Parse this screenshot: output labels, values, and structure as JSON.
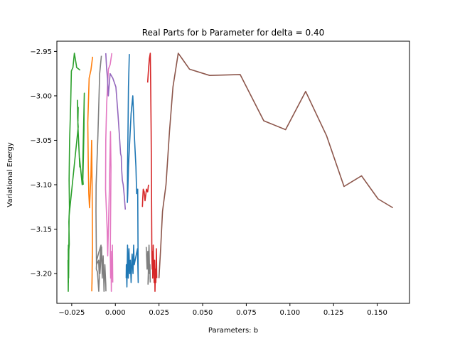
{
  "chart_data": {
    "type": "line",
    "title": "Real Parts for b Parameter for delta = 0.40",
    "xlabel": "Parameters: b",
    "ylabel": "Variational Energy",
    "xlim": [
      -0.0335,
      0.1685
    ],
    "ylim": [
      -3.2335,
      -2.9385
    ],
    "xticks": [
      -0.025,
      0.0,
      0.025,
      0.05,
      0.075,
      0.1,
      0.125,
      0.15
    ],
    "xtick_labels": [
      "−0.025",
      "0.000",
      "0.025",
      "0.050",
      "0.075",
      "0.100",
      "0.125",
      "0.150"
    ],
    "yticks": [
      -3.2,
      -3.15,
      -3.1,
      -3.05,
      -3.0,
      -2.95
    ],
    "ytick_labels": [
      "−3.20",
      "−3.15",
      "−3.10",
      "−3.05",
      "−3.00",
      "−2.95"
    ],
    "grid": false,
    "series": [
      {
        "color": "#2ca02c",
        "x": [
          -0.0202,
          -0.0222,
          -0.0223,
          -0.0235,
          -0.0243,
          -0.0252,
          -0.0256,
          -0.0262,
          -0.0265,
          -0.0263,
          -0.0266,
          -0.0264,
          -0.0268,
          -0.0267,
          -0.0269,
          -0.027,
          -0.0268,
          -0.027,
          -0.0271,
          -0.0269,
          -0.027,
          -0.0268,
          -0.0266,
          -0.0265,
          -0.0213,
          -0.0216,
          -0.0217,
          -0.0214,
          -0.0216,
          -0.0213,
          -0.0215,
          -0.0204,
          -0.0205,
          -0.019,
          -0.0186,
          -0.0183,
          -0.018,
          -0.0179,
          -0.0178,
          -0.0188,
          -0.0184
        ],
        "y": [
          -2.971,
          -2.968,
          -2.966,
          -2.952,
          -2.968,
          -2.972,
          -3.01,
          -3.05,
          -3.095,
          -3.126,
          -3.142,
          -3.167,
          -3.178,
          -3.185,
          -3.168,
          -3.2,
          -3.178,
          -3.22,
          -3.185,
          -3.21,
          -3.172,
          -3.205,
          -3.168,
          -3.135,
          -3.035,
          -3.025,
          -3.005,
          -3.028,
          -3.017,
          -3.013,
          -3.032,
          -3.08,
          -3.07,
          -3.1,
          -3.093,
          -3.069,
          -3.037,
          -3.012,
          -2.997,
          -3.09,
          -3.1
        ]
      },
      {
        "color": "#ff7f0e",
        "x": [
          -0.013,
          -0.014,
          -0.015,
          -0.0158,
          -0.0155,
          -0.0152,
          -0.0148,
          -0.014,
          -0.0136,
          -0.0133,
          -0.0131,
          -0.0132,
          -0.0131,
          -0.0133,
          -0.0132,
          -0.0134,
          -0.0133,
          -0.0135
        ],
        "y": [
          -2.956,
          -2.971,
          -2.98,
          -3.03,
          -3.08,
          -3.11,
          -3.126,
          -3.09,
          -3.05,
          -3.1,
          -3.168,
          -3.185,
          -3.17,
          -3.198,
          -3.18,
          -3.212,
          -3.2,
          -3.22
        ]
      },
      {
        "color": "#7f7f7f",
        "x": [
          -0.008,
          -0.009,
          -0.01,
          -0.011,
          -0.0111,
          -0.0108,
          -0.0096,
          -0.0092,
          -0.0095,
          -0.01,
          -0.0103,
          -0.0109,
          -0.0107,
          -0.0093,
          -0.0082,
          -0.009,
          -0.0088,
          -0.0079,
          -0.0075,
          -0.007,
          -0.0065,
          -0.006,
          -0.0055,
          -0.0054
        ],
        "y": [
          -2.955,
          -2.975,
          -3.045,
          -3.1,
          -3.13,
          -3.19,
          -3.185,
          -3.205,
          -3.22,
          -3.205,
          -3.198,
          -3.195,
          -3.185,
          -3.175,
          -3.168,
          -3.19,
          -3.2,
          -3.17,
          -3.205,
          -3.18,
          -3.22,
          -3.19,
          -3.212,
          -3.22
        ]
      },
      {
        "color": "#e377c2",
        "x": [
          -0.002,
          -0.003,
          -0.004,
          -0.005,
          -0.0055,
          -0.0056,
          -0.0047,
          -0.0044,
          -0.0035,
          -0.003,
          -0.0028,
          -0.0025,
          -0.0029,
          -0.0027,
          -0.0025,
          -0.0023,
          -0.0021,
          -0.0019,
          -0.0017,
          -0.0015
        ],
        "y": [
          -2.952,
          -2.965,
          -2.97,
          -3.01,
          -3.05,
          -3.105,
          -3.15,
          -3.18,
          -3.11,
          -3.06,
          -3.04,
          -3.08,
          -3.18,
          -3.205,
          -3.175,
          -3.22,
          -3.185,
          -3.2,
          -3.168,
          -3.21
        ]
      },
      {
        "color": "#9467bd",
        "x": [
          -0.0055,
          -0.005,
          -0.0045,
          -0.004,
          -0.003,
          -0.0015,
          0.0003,
          0.0015,
          0.0025,
          0.003,
          0.0034,
          0.0035,
          0.004,
          0.0045,
          0.005,
          0.0057
        ],
        "y": [
          -2.952,
          -2.97,
          -2.98,
          -3.0,
          -2.975,
          -2.98,
          -2.99,
          -3.02,
          -3.05,
          -3.065,
          -3.068,
          -3.08,
          -3.095,
          -3.1,
          -3.11,
          -3.128
        ]
      },
      {
        "color": "#1f77b4",
        "x": [
          0.008,
          0.0075,
          0.0072,
          0.007,
          0.0069,
          0.0071,
          0.0075,
          0.008,
          0.009,
          0.01,
          0.011,
          0.0118,
          0.0122,
          0.0128,
          0.0131,
          0.0127,
          0.0108,
          0.0105,
          0.0101,
          0.0096,
          0.009,
          0.0086,
          0.0082,
          0.0078,
          0.0074,
          0.007,
          0.0066,
          0.0063,
          0.0062
        ],
        "y": [
          -2.953,
          -2.99,
          -3.05,
          -3.08,
          -3.12,
          -3.11,
          -3.08,
          -3.06,
          -3.02,
          -3.0,
          -3.05,
          -3.08,
          -3.11,
          -3.105,
          -3.21,
          -3.172,
          -3.19,
          -3.168,
          -3.2,
          -3.178,
          -3.21,
          -3.185,
          -3.2,
          -3.172,
          -3.205,
          -3.168,
          -3.215,
          -3.19,
          -3.205
        ]
      },
      {
        "color": "#d62728",
        "x": [
          0.0185,
          0.019,
          0.0195,
          0.02,
          0.0202,
          0.0205,
          0.0207,
          0.0209,
          0.0211,
          0.0213,
          0.0214,
          0.0217,
          0.0222,
          0.0225,
          0.0227,
          0.023,
          0.0232,
          0.0235,
          0.0237
        ],
        "y": [
          -2.985,
          -2.97,
          -2.958,
          -2.952,
          -2.985,
          -3.04,
          -3.1,
          -3.18,
          -3.195,
          -3.175,
          -3.205,
          -3.168,
          -3.21,
          -3.185,
          -3.22,
          -3.195,
          -3.21,
          -3.172,
          -3.205
        ]
      },
      {
        "color": "#8c564b",
        "x": [
          0.025,
          0.026,
          0.027,
          0.029,
          0.031,
          0.033,
          0.036,
          0.0425,
          0.054,
          0.0715,
          0.085,
          0.0975,
          0.109,
          0.121,
          0.131,
          0.141,
          0.1505,
          0.159
        ],
        "y": [
          -3.205,
          -3.17,
          -3.13,
          -3.1,
          -3.04,
          -2.99,
          -2.952,
          -2.97,
          -2.977,
          -2.976,
          -3.028,
          -3.038,
          -2.995,
          -3.045,
          -3.102,
          -3.09,
          -3.116,
          -3.126
        ]
      },
      {
        "color": "#7f7f7f",
        "x": [
          0.0177,
          0.0182,
          0.0186,
          0.019,
          0.0187,
          0.0193,
          0.0196,
          0.0198,
          0.02
        ],
        "y": [
          -3.17,
          -3.195,
          -3.175,
          -3.205,
          -3.212,
          -3.168,
          -3.2,
          -3.19,
          -3.21
        ]
      },
      {
        "color": "#d62728",
        "x": [
          0.0155,
          0.0157,
          0.016,
          0.0165,
          0.017,
          0.0178,
          0.0185,
          0.019
        ],
        "y": [
          -3.125,
          -3.115,
          -3.105,
          -3.108,
          -3.118,
          -3.105,
          -3.108,
          -3.1
        ]
      }
    ]
  }
}
